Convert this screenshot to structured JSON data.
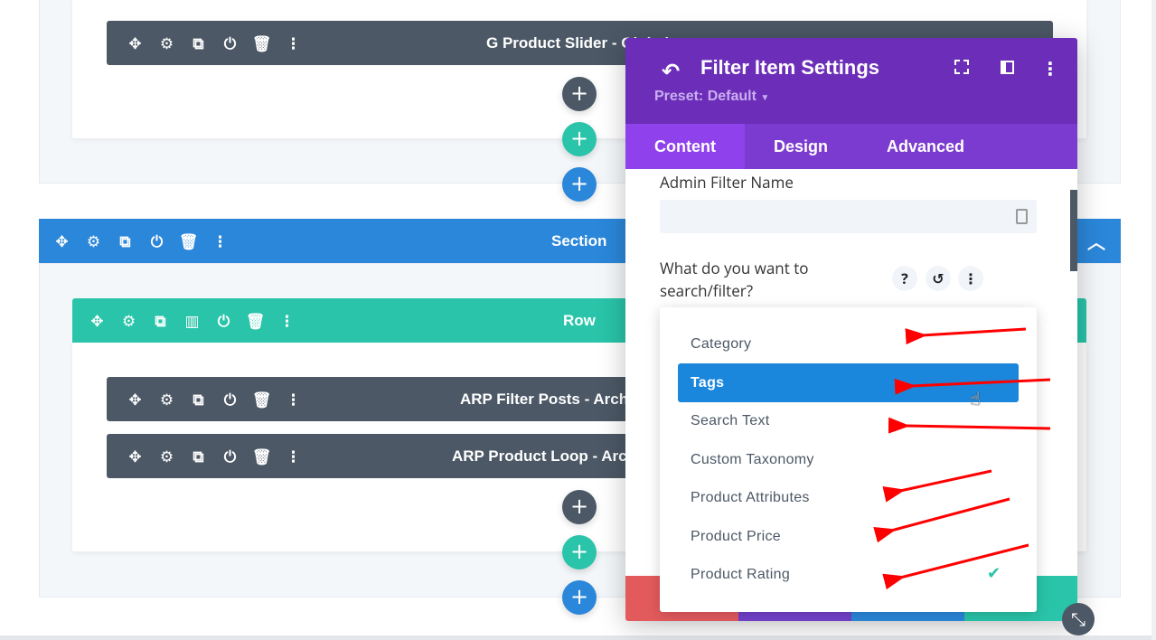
{
  "builder": {
    "modules_top": [
      {
        "title": "G Product Slider - Global"
      }
    ],
    "section": {
      "title": "Section"
    },
    "row": {
      "title": "Row"
    },
    "modules_row": [
      {
        "title": "ARP Filter Posts - Archive"
      },
      {
        "title": "ARP Product Loop - Archive"
      }
    ],
    "add_symbol": "+",
    "colors": {
      "module": "#4c5866",
      "section": "#2b87da",
      "row": "#29c4a9"
    }
  },
  "panel": {
    "title": "Filter Item Settings",
    "preset": "Preset: Default",
    "tabs": [
      {
        "label": "Content",
        "active": true
      },
      {
        "label": "Design"
      },
      {
        "label": "Advanced"
      }
    ],
    "admin_filter_name": {
      "label": "Admin Filter Name",
      "value": ""
    },
    "filter_question": {
      "label": "What do you want to search/filter?"
    },
    "dropdown": {
      "options": [
        "Category",
        "Tags",
        "Search Text",
        "Custom Taxonomy",
        "Product Attributes",
        "Product Price",
        "Product Rating"
      ],
      "highlighted": "Tags",
      "checked": "Product Rating"
    },
    "colors": {
      "header": "#6c2eb9",
      "tabs": "#7b3bd0",
      "highlight": "#1b87dc"
    }
  }
}
